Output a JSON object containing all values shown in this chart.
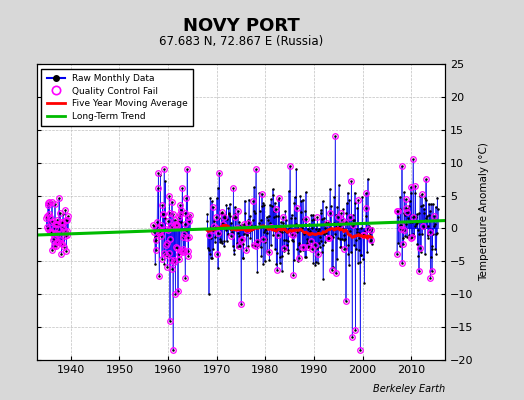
{
  "title": "NOVY PORT",
  "subtitle": "67.683 N, 72.867 E (Russia)",
  "ylabel": "Temperature Anomaly (°C)",
  "credit": "Berkeley Earth",
  "ylim": [
    -20,
    25
  ],
  "xlim": [
    1933,
    2017
  ],
  "xticks": [
    1940,
    1950,
    1960,
    1970,
    1980,
    1990,
    2000,
    2010
  ],
  "yticks": [
    -20,
    -15,
    -10,
    -5,
    0,
    5,
    10,
    15,
    20,
    25
  ],
  "bg_color": "#d8d8d8",
  "plot_bg": "#ffffff",
  "raw_color": "#0000ee",
  "qc_color": "#ff00ff",
  "ma_color": "#ff0000",
  "trend_color": "#00bb00",
  "seed": 42
}
